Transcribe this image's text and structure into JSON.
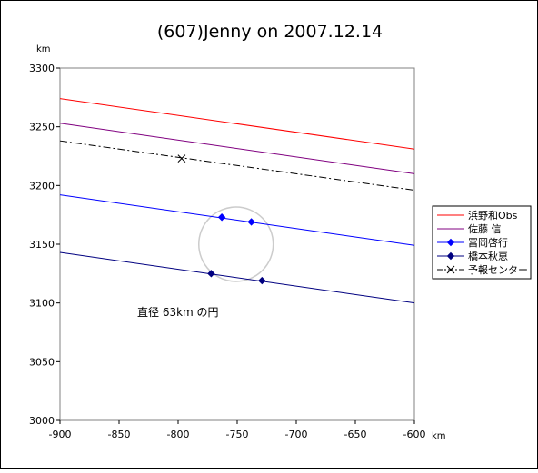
{
  "chart_data": {
    "type": "line",
    "title": "(607)Jenny on 2007.12.14",
    "xlabel": "km",
    "ylabel": "km",
    "xlim": [
      -900,
      -600
    ],
    "ylim": [
      3000,
      3300
    ],
    "xticks": [
      -900,
      -850,
      -800,
      -750,
      -700,
      -650,
      -600
    ],
    "yticks": [
      3000,
      3050,
      3100,
      3150,
      3200,
      3250,
      3300
    ],
    "grid": false,
    "legend_position": "right",
    "series": [
      {
        "name": "浜野和Obs",
        "color": "#ff0000",
        "style": "solid",
        "marker": "none",
        "x": [
          -900,
          -600
        ],
        "y": [
          3274,
          3231
        ]
      },
      {
        "name": "佐藤 信",
        "color": "#800080",
        "style": "solid",
        "marker": "none",
        "x": [
          -900,
          -600
        ],
        "y": [
          3253,
          3210
        ]
      },
      {
        "name": "冨岡啓行",
        "color": "#0000ff",
        "style": "solid",
        "marker": "diamond",
        "x": [
          -900,
          -600
        ],
        "y": [
          3192,
          3149
        ],
        "markers": [
          [
            -763,
            3173
          ],
          [
            -738,
            3169
          ]
        ]
      },
      {
        "name": "橋本秋恵",
        "color": "#000080",
        "style": "solid",
        "marker": "diamond",
        "x": [
          -900,
          -600
        ],
        "y": [
          3143,
          3100
        ],
        "markers": [
          [
            -772,
            3125
          ],
          [
            -729,
            3119
          ]
        ]
      },
      {
        "name": "予報センター",
        "color": "#000000",
        "style": "dashdot",
        "marker": "x",
        "x": [
          -900,
          -600
        ],
        "y": [
          3238,
          3196
        ],
        "markers": [
          [
            -797,
            3223
          ]
        ]
      }
    ],
    "circle": {
      "cx": -751,
      "cy": 3150,
      "diameter_km": 63,
      "color": "#cccccc"
    },
    "annotation": "直径 63km の円"
  }
}
